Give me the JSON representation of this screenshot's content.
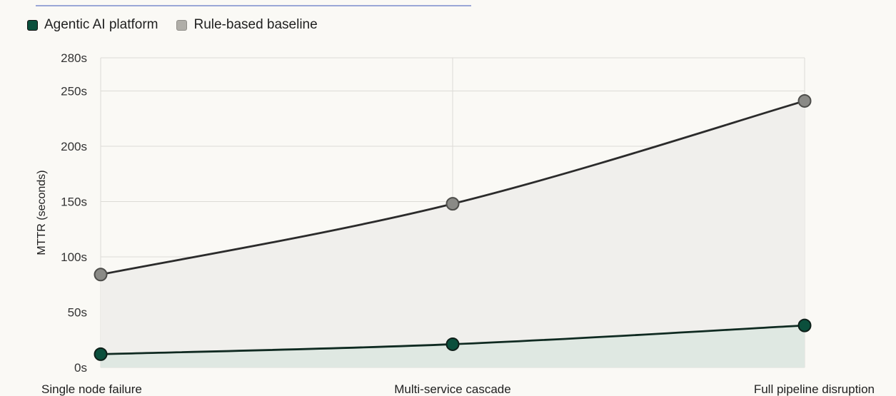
{
  "chart_data": {
    "type": "line",
    "categories": [
      "Single node failure",
      "Multi-service cascade",
      "Full pipeline disruption"
    ],
    "series": [
      {
        "name": "Agentic AI platform",
        "values": [
          12,
          21,
          38
        ],
        "color": "#0b4f3c"
      },
      {
        "name": "Rule-based baseline",
        "values": [
          84,
          148,
          241
        ],
        "color": "#8a8a86"
      }
    ],
    "ylabel": "MTTR (seconds)",
    "xlabel": "",
    "ylim": [
      0,
      280
    ],
    "yticks": [
      0,
      50,
      100,
      150,
      200,
      250,
      280
    ],
    "ytick_labels": [
      "0s",
      "50s",
      "100s",
      "150s",
      "200s",
      "250s",
      "280s"
    ],
    "grid": true,
    "legend": "top-left",
    "area_fill": true
  }
}
